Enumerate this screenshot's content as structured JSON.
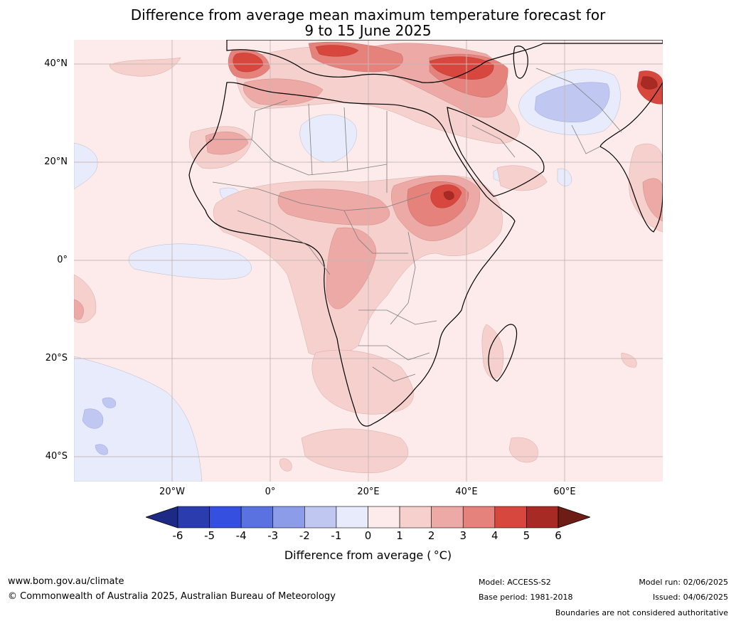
{
  "title": {
    "line1": "Difference from average mean maximum temperature forecast for",
    "line2": "9 to 15 June 2025"
  },
  "map": {
    "lat_labels": [
      "40°N",
      "20°N",
      "0°",
      "20°S",
      "40°S"
    ],
    "lon_labels": [
      "20°W",
      "0°",
      "20°E",
      "40°E",
      "60°E"
    ]
  },
  "colorbar": {
    "ticks": [
      "-6",
      "-5",
      "-4",
      "-3",
      "-2",
      "-1",
      "0",
      "1",
      "2",
      "3",
      "4",
      "5",
      "6"
    ],
    "colors": [
      "#1c2a86",
      "#2a3cae",
      "#3550e0",
      "#5a72e0",
      "#8c9ce8",
      "#c0c8f2",
      "#e8ebfb",
      "#fcebea",
      "#f5d0cd",
      "#eda9a5",
      "#e5827c",
      "#d8473e",
      "#a82a24",
      "#6e1c16"
    ],
    "label": "Difference from average ( °C)"
  },
  "footer": {
    "url": "www.bom.gov.au/climate",
    "copyright": "© Commonwealth of Australia 2025, Australian Bureau of Meteorology",
    "model": "Model: ACCESS-S2",
    "base_period": "Base period: 1981-2018",
    "model_run": "Model run: 02/06/2025",
    "issued": "Issued: 04/06/2025",
    "disclaimer": "Boundaries are not considered authoritative"
  }
}
